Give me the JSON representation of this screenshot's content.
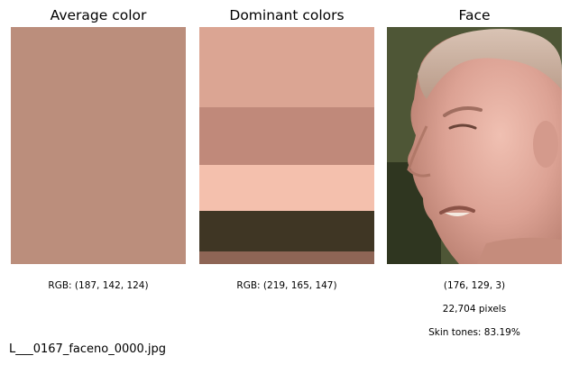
{
  "panels": {
    "average": {
      "title": "Average color",
      "color": "#bb8e7c",
      "caption": "RGB: (187, 142, 124)"
    },
    "dominant": {
      "title": "Dominant colors",
      "caption": "RGB: (219, 165, 147)",
      "swatches": [
        {
          "color": "#dba593",
          "fraction": 0.338
        },
        {
          "color": "#c0897a",
          "fraction": 0.243
        },
        {
          "color": "#f4c0ad",
          "fraction": 0.194
        },
        {
          "color": "#3f3624",
          "fraction": 0.171
        },
        {
          "color": "#8e6555",
          "fraction": 0.054
        }
      ]
    },
    "face": {
      "title": "Face",
      "shape_caption": "(176, 129, 3)",
      "pixels_caption": "22,704 pixels",
      "skin_caption": "Skin tones: 83.19%"
    }
  },
  "filename": "L___0167_faceno_0000.jpg"
}
